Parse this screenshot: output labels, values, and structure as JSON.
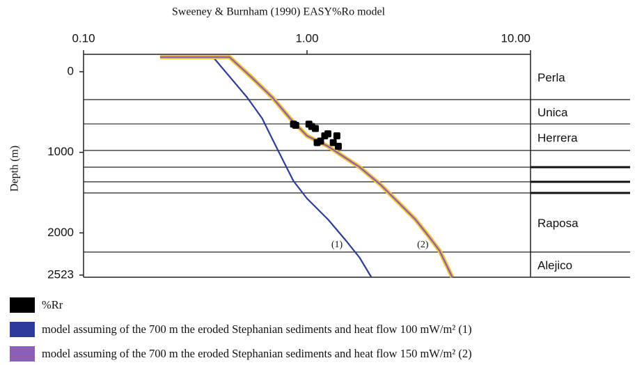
{
  "chart_data": {
    "type": "line",
    "title": "Sweeney & Burnham (1990) EASY%Ro model",
    "ylabel": "Depth (m)",
    "xscale": "log",
    "xlim": [
      0.1,
      10
    ],
    "xticks": [
      {
        "value": 0.1,
        "label": "0.10"
      },
      {
        "value": 1,
        "label": "1.00"
      },
      {
        "value": 10,
        "label": "10.00"
      }
    ],
    "ylim": [
      -216,
      2550
    ],
    "yticks": [
      0,
      1000,
      2000,
      2523
    ],
    "points": {
      "name": "%Rr",
      "color": "#000000",
      "x": [
        0.87,
        0.89,
        1.02,
        1.05,
        1.09,
        1.2,
        1.24,
        1.36,
        1.38,
        1.31,
        1.11,
        1.15
      ],
      "y": [
        650,
        665,
        650,
        680,
        705,
        795,
        770,
        795,
        925,
        880,
        880,
        860
      ]
    },
    "series": [
      {
        "name": "model assuming of the 700 m the eroded Stephanian sediments and heat flow 100 mW/m² (1)",
        "label": "(1)",
        "color": "#2e3a9c",
        "x": [
          0.38,
          0.45,
          0.54,
          0.63,
          0.7,
          0.78,
          0.87,
          1.0,
          1.24,
          1.49,
          1.72,
          1.94
        ],
        "y": [
          -181,
          60,
          320,
          579,
          838,
          1098,
          1357,
          1573,
          1832,
          2092,
          2308,
          2550
        ]
      },
      {
        "name": "model assuming of the 700 m the eroded Stephanian sediments and heat flow 150 mW/m² (2)",
        "label": "(2)",
        "color": "#8a5fb5",
        "outline_color": "#f2c232",
        "x": [
          0.22,
          0.45,
          0.56,
          0.7,
          0.84,
          1.0,
          1.24,
          1.72,
          2.13,
          2.55,
          3.05,
          3.52,
          3.92,
          4.47
        ],
        "y": [
          -181,
          -181,
          60,
          320,
          579,
          795,
          925,
          1184,
          1400,
          1616,
          1832,
          2048,
          2221,
          2550
        ]
      }
    ],
    "formations": [
      {
        "name": "Perla",
        "base": 346
      },
      {
        "name": "Unica",
        "base": 648
      },
      {
        "name": "Herrera",
        "base": 977
      },
      {
        "name": null,
        "base": 1184
      },
      {
        "name": null,
        "base": 1366
      },
      {
        "name": null,
        "base": 1504
      },
      {
        "name": "Raposa",
        "base": 2238
      },
      {
        "name": "Alejico",
        "base": null
      }
    ]
  }
}
